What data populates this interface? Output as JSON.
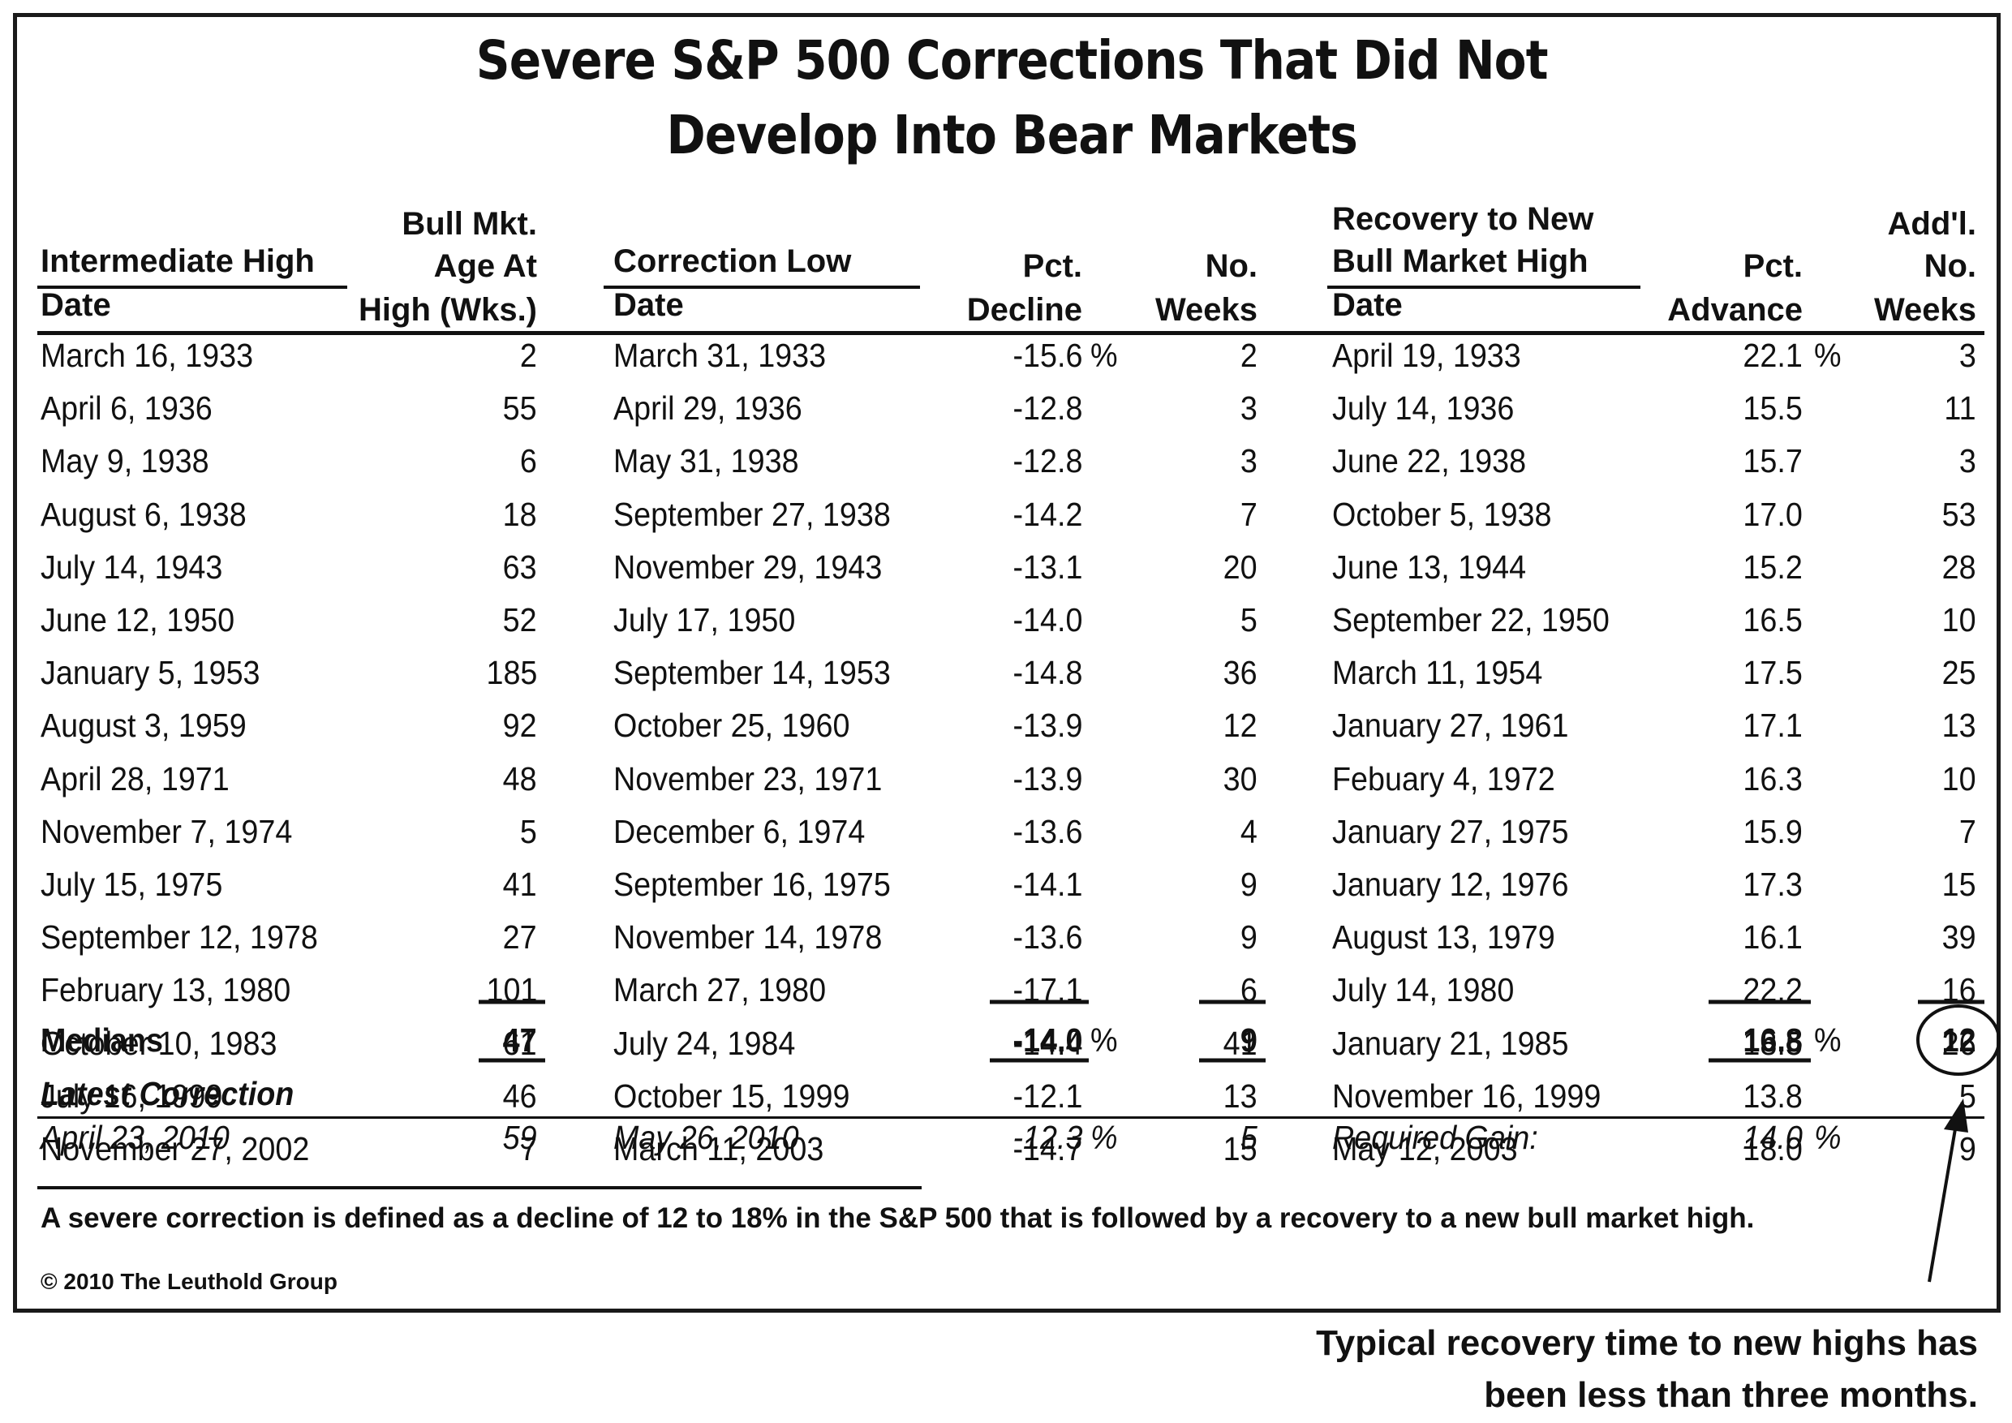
{
  "title_line1": "Severe S&P 500 Corrections That Did Not",
  "title_line2": "Develop Into Bear Markets",
  "headers": {
    "intermediate_high": "Intermediate High",
    "date": "Date",
    "bull_age_1": "Bull Mkt.",
    "bull_age_2": "Age At",
    "bull_age_3": "High (Wks.)",
    "correction_low": "Correction Low",
    "pct_1": "Pct.",
    "decline": "Decline",
    "no": "No.",
    "weeks": "Weeks",
    "recovery_1": "Recovery to New",
    "recovery_2": "Bull Market High",
    "advance": "Advance",
    "addl": "Add'l."
  },
  "chart_data": {
    "type": "table",
    "title": "Severe S&P 500 Corrections That Did Not Develop Into Bear Markets",
    "columns": [
      "Intermediate High Date",
      "Bull Mkt. Age At High (Wks.)",
      "Correction Low Date",
      "Pct. Decline",
      "No. Weeks",
      "Recovery to New Bull Market High Date",
      "Pct. Advance",
      "Add'l. No. Weeks"
    ],
    "rows": [
      [
        "March 16, 1933",
        "2",
        "March 31, 1933",
        "-15.6",
        "2",
        "April 19, 1933",
        "22.1",
        "3"
      ],
      [
        "April 6, 1936",
        "55",
        "April 29, 1936",
        "-12.8",
        "3",
        "July 14, 1936",
        "15.5",
        "11"
      ],
      [
        "May 9, 1938",
        "6",
        "May 31, 1938",
        "-12.8",
        "3",
        "June 22, 1938",
        "15.7",
        "3"
      ],
      [
        "August 6, 1938",
        "18",
        "September 27, 1938",
        "-14.2",
        "7",
        "October 5, 1938",
        "17.0",
        "53"
      ],
      [
        "July 14, 1943",
        "63",
        "November 29, 1943",
        "-13.1",
        "20",
        "June 13, 1944",
        "15.2",
        "28"
      ],
      [
        "June 12, 1950",
        "52",
        "July 17, 1950",
        "-14.0",
        "5",
        "September 22, 1950",
        "16.5",
        "10"
      ],
      [
        "January 5, 1953",
        "185",
        "September 14, 1953",
        "-14.8",
        "36",
        "March 11, 1954",
        "17.5",
        "25"
      ],
      [
        "August 3, 1959",
        "92",
        "October 25, 1960",
        "-13.9",
        "12",
        "January 27, 1961",
        "17.1",
        "13"
      ],
      [
        "April 28, 1971",
        "48",
        "November 23, 1971",
        "-13.9",
        "30",
        "Febuary 4, 1972",
        "16.3",
        "10"
      ],
      [
        "November 7, 1974",
        "5",
        "December 6, 1974",
        "-13.6",
        "4",
        "January 27, 1975",
        "15.9",
        "7"
      ],
      [
        "July 15, 1975",
        "41",
        "September 16, 1975",
        "-14.1",
        "9",
        "January 12, 1976",
        "17.3",
        "15"
      ],
      [
        "September 12, 1978",
        "27",
        "November 14, 1978",
        "-13.6",
        "9",
        "August 13, 1979",
        "16.1",
        "39"
      ],
      [
        "February 13, 1980",
        "101",
        "March 27, 1980",
        "-17.1",
        "6",
        "July 14, 1980",
        "22.2",
        "16"
      ],
      [
        "October 10, 1983",
        "61",
        "July 24, 1984",
        "-14.4",
        "41",
        "January 21, 1985",
        "18.5",
        "26"
      ],
      [
        "July 16, 1999",
        "46",
        "October 15, 1999",
        "-12.1",
        "13",
        "November 16, 1999",
        "13.8",
        "5"
      ],
      [
        "November 27, 2002",
        "7",
        "March 11, 2003",
        "-14.7",
        "15",
        "May 12, 2003",
        "18.0",
        "9"
      ]
    ],
    "percent_sign": "%",
    "medians": {
      "label": "Medians",
      "age": "47",
      "decline": "-14.0",
      "weeks": "9",
      "advance": "16.8",
      "addl_weeks": "12"
    },
    "latest": {
      "label": "Latest Correction",
      "high_date": "April 23, 2010",
      "age": "59",
      "low_date": "May 26, 2010",
      "decline": "-12.3",
      "weeks": "5",
      "required_label": "Required Gain:",
      "required": "14.0"
    }
  },
  "footnote": "A severe correction is defined as a decline of 12 to 18% in the S&P 500 that is followed by a recovery to a new bull market high.",
  "copyright": "© 2010 The Leuthold Group",
  "annotation_line1": "Typical recovery time to new highs has",
  "annotation_line2": "been less than three months."
}
